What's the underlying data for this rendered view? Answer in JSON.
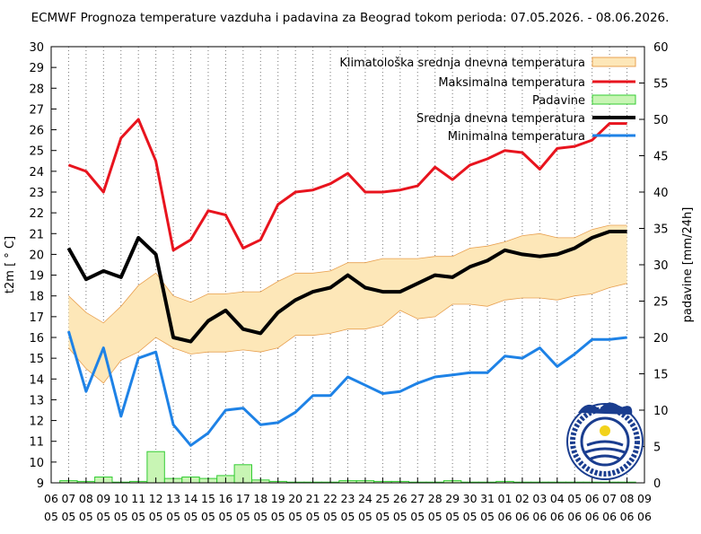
{
  "chart_data": {
    "type": "line",
    "title": "ECMWF Prognoza temperature vazduha i padavina za Beograd tokom perioda: 07.05.2026. - 08.06.2026.",
    "ylabel": "t2m [ ° C]",
    "y2label": "padavine [mm/24h]",
    "ylim": [
      9,
      30
    ],
    "y2lim": [
      0,
      60
    ],
    "y_ticks": [
      "9",
      "10",
      "11",
      "12",
      "13",
      "14",
      "15",
      "16",
      "17",
      "18",
      "19",
      "20",
      "21",
      "22",
      "23",
      "24",
      "25",
      "26",
      "27",
      "28",
      "29",
      "30"
    ],
    "y2_ticks": [
      "0",
      "5",
      "10",
      "15",
      "20",
      "25",
      "30",
      "35",
      "40",
      "45",
      "50",
      "55",
      "60"
    ],
    "x_ticks": [
      {
        "d": "06",
        "m": "05"
      },
      {
        "d": "07",
        "m": "05"
      },
      {
        "d": "08",
        "m": "05"
      },
      {
        "d": "09",
        "m": "05"
      },
      {
        "d": "10",
        "m": "05"
      },
      {
        "d": "11",
        "m": "05"
      },
      {
        "d": "12",
        "m": "05"
      },
      {
        "d": "13",
        "m": "05"
      },
      {
        "d": "14",
        "m": "05"
      },
      {
        "d": "15",
        "m": "05"
      },
      {
        "d": "16",
        "m": "05"
      },
      {
        "d": "17",
        "m": "05"
      },
      {
        "d": "18",
        "m": "05"
      },
      {
        "d": "19",
        "m": "05"
      },
      {
        "d": "20",
        "m": "05"
      },
      {
        "d": "21",
        "m": "05"
      },
      {
        "d": "22",
        "m": "05"
      },
      {
        "d": "23",
        "m": "05"
      },
      {
        "d": "24",
        "m": "05"
      },
      {
        "d": "25",
        "m": "05"
      },
      {
        "d": "26",
        "m": "05"
      },
      {
        "d": "27",
        "m": "05"
      },
      {
        "d": "28",
        "m": "05"
      },
      {
        "d": "29",
        "m": "05"
      },
      {
        "d": "30",
        "m": "05"
      },
      {
        "d": "31",
        "m": "05"
      },
      {
        "d": "01",
        "m": "06"
      },
      {
        "d": "02",
        "m": "06"
      },
      {
        "d": "03",
        "m": "06"
      },
      {
        "d": "04",
        "m": "06"
      },
      {
        "d": "05",
        "m": "06"
      },
      {
        "d": "06",
        "m": "06"
      },
      {
        "d": "07",
        "m": "06"
      },
      {
        "d": "08",
        "m": "06"
      },
      {
        "d": "09",
        "m": "06"
      }
    ],
    "legend": [
      {
        "label": "Klimatološka srednja dnevna temperatura",
        "kind": "band",
        "color": "#fde7b8",
        "stroke": "#e8a050"
      },
      {
        "label": "Maksimalna temperatura",
        "kind": "line",
        "color": "#e8141e"
      },
      {
        "label": "Padavine",
        "kind": "bar",
        "color": "#c8f5b4",
        "stroke": "#33cc33"
      },
      {
        "label": "Srednja dnevna temperatura",
        "kind": "line",
        "color": "#000000"
      },
      {
        "label": "Minimalna temperatura",
        "kind": "line",
        "color": "#1e82e6"
      }
    ],
    "legend_position": "top-right",
    "x": [
      "07.05",
      "08.05",
      "09.05",
      "10.05",
      "11.05",
      "12.05",
      "13.05",
      "14.05",
      "15.05",
      "16.05",
      "17.05",
      "18.05",
      "19.05",
      "20.05",
      "21.05",
      "22.05",
      "23.05",
      "24.05",
      "25.05",
      "26.05",
      "27.05",
      "28.05",
      "29.05",
      "30.05",
      "31.05",
      "01.06",
      "02.06",
      "03.06",
      "04.06",
      "05.06",
      "06.06",
      "07.06",
      "08.06"
    ],
    "series": [
      {
        "name": "Maksimalna temperatura",
        "color": "#e8141e",
        "values": [
          24.3,
          24.0,
          23.0,
          25.6,
          26.5,
          24.5,
          20.2,
          20.7,
          22.1,
          21.9,
          20.3,
          20.7,
          22.4,
          23.0,
          23.1,
          23.4,
          23.9,
          23.0,
          23.0,
          23.1,
          23.3,
          24.2,
          23.6,
          24.3,
          24.6,
          25.0,
          24.9,
          24.1,
          25.1,
          25.2,
          25.5,
          26.3,
          26.3
        ]
      },
      {
        "name": "Srednja dnevna temperatura",
        "color": "#000000",
        "values": [
          20.3,
          18.8,
          19.2,
          18.9,
          20.8,
          20.0,
          16.0,
          15.8,
          16.8,
          17.3,
          16.4,
          16.2,
          17.2,
          17.8,
          18.2,
          18.4,
          19.0,
          18.4,
          18.2,
          18.2,
          18.6,
          19.0,
          18.9,
          19.4,
          19.7,
          20.2,
          20.0,
          19.9,
          20.0,
          20.3,
          20.8,
          21.1,
          21.1
        ]
      },
      {
        "name": "Minimalna temperatura",
        "color": "#1e82e6",
        "values": [
          16.3,
          13.4,
          15.5,
          12.2,
          15.0,
          15.3,
          11.8,
          10.8,
          11.4,
          12.5,
          12.6,
          11.8,
          11.9,
          12.4,
          13.2,
          13.2,
          14.1,
          13.7,
          13.3,
          13.4,
          13.8,
          14.1,
          14.2,
          14.3,
          14.3,
          15.1,
          15.0,
          15.5,
          14.6,
          15.2,
          15.9,
          15.9,
          16.0
        ]
      }
    ],
    "climatology_band": {
      "name": "Klimatološka srednja dnevna temperatura",
      "upper": [
        18.0,
        17.2,
        16.7,
        17.5,
        18.5,
        19.1,
        18.0,
        17.7,
        18.1,
        18.1,
        18.2,
        18.2,
        18.7,
        19.1,
        19.1,
        19.2,
        19.6,
        19.6,
        19.8,
        19.8,
        19.8,
        19.9,
        19.9,
        20.3,
        20.4,
        20.6,
        20.9,
        21.0,
        20.8,
        20.8,
        21.2,
        21.4,
        21.4
      ],
      "lower": [
        15.5,
        14.5,
        13.8,
        14.9,
        15.3,
        16.0,
        15.5,
        15.2,
        15.3,
        15.3,
        15.4,
        15.3,
        15.5,
        16.1,
        16.1,
        16.2,
        16.4,
        16.4,
        16.6,
        17.3,
        16.9,
        17.0,
        17.6,
        17.6,
        17.5,
        17.8,
        17.9,
        17.9,
        17.8,
        18.0,
        18.1,
        18.4,
        18.6
      ]
    },
    "precipitation": [
      0.3,
      0.2,
      0.8,
      0.1,
      0.2,
      4.3,
      0.6,
      0.8,
      0.6,
      1.0,
      2.5,
      0.4,
      0.2,
      0.1,
      0.1,
      0.1,
      0.3,
      0.3,
      0.2,
      0.2,
      0.1,
      0.1,
      0.3,
      0.1,
      0.1,
      0.2,
      0.1,
      0.1,
      0.1,
      0.1,
      0.1,
      0.1,
      0.1
    ],
    "grid": "vertical dotted"
  }
}
